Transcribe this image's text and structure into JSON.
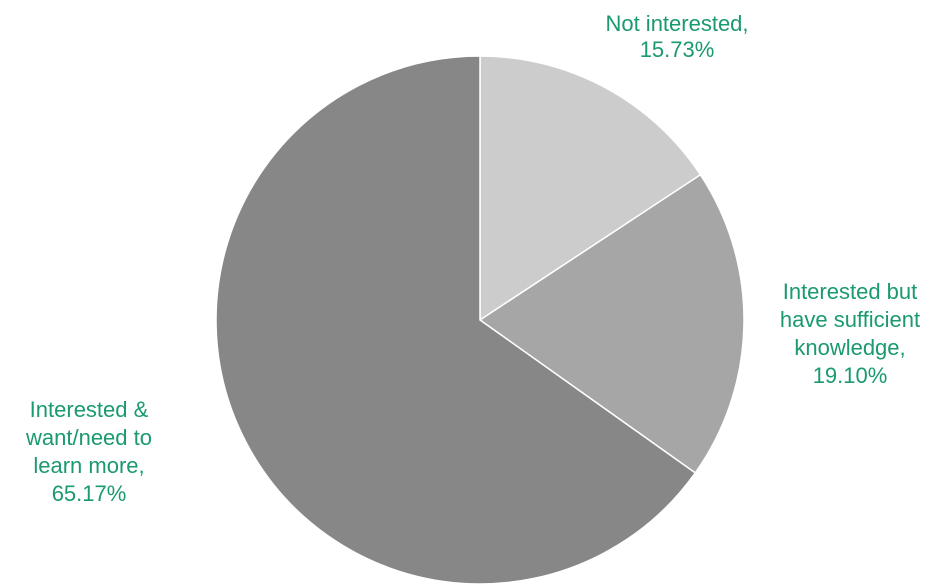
{
  "chart_data": {
    "type": "pie",
    "title": "",
    "start_angle_deg": 0,
    "direction": "clockwise",
    "label_color": "#1a9a6e",
    "slices": [
      {
        "label_lines": [
          "Not interested,",
          "15.73%"
        ],
        "value": 15.73,
        "color": "#cccccc"
      },
      {
        "label_lines": [
          "Interested but",
          "have sufficient",
          "knowledge,",
          "19.10%"
        ],
        "value": 19.1,
        "color": "#a6a6a6"
      },
      {
        "label_lines": [
          "Interested &",
          "want/need to",
          "learn more,",
          "65.17%"
        ],
        "value": 65.17,
        "color": "#878787"
      }
    ]
  }
}
